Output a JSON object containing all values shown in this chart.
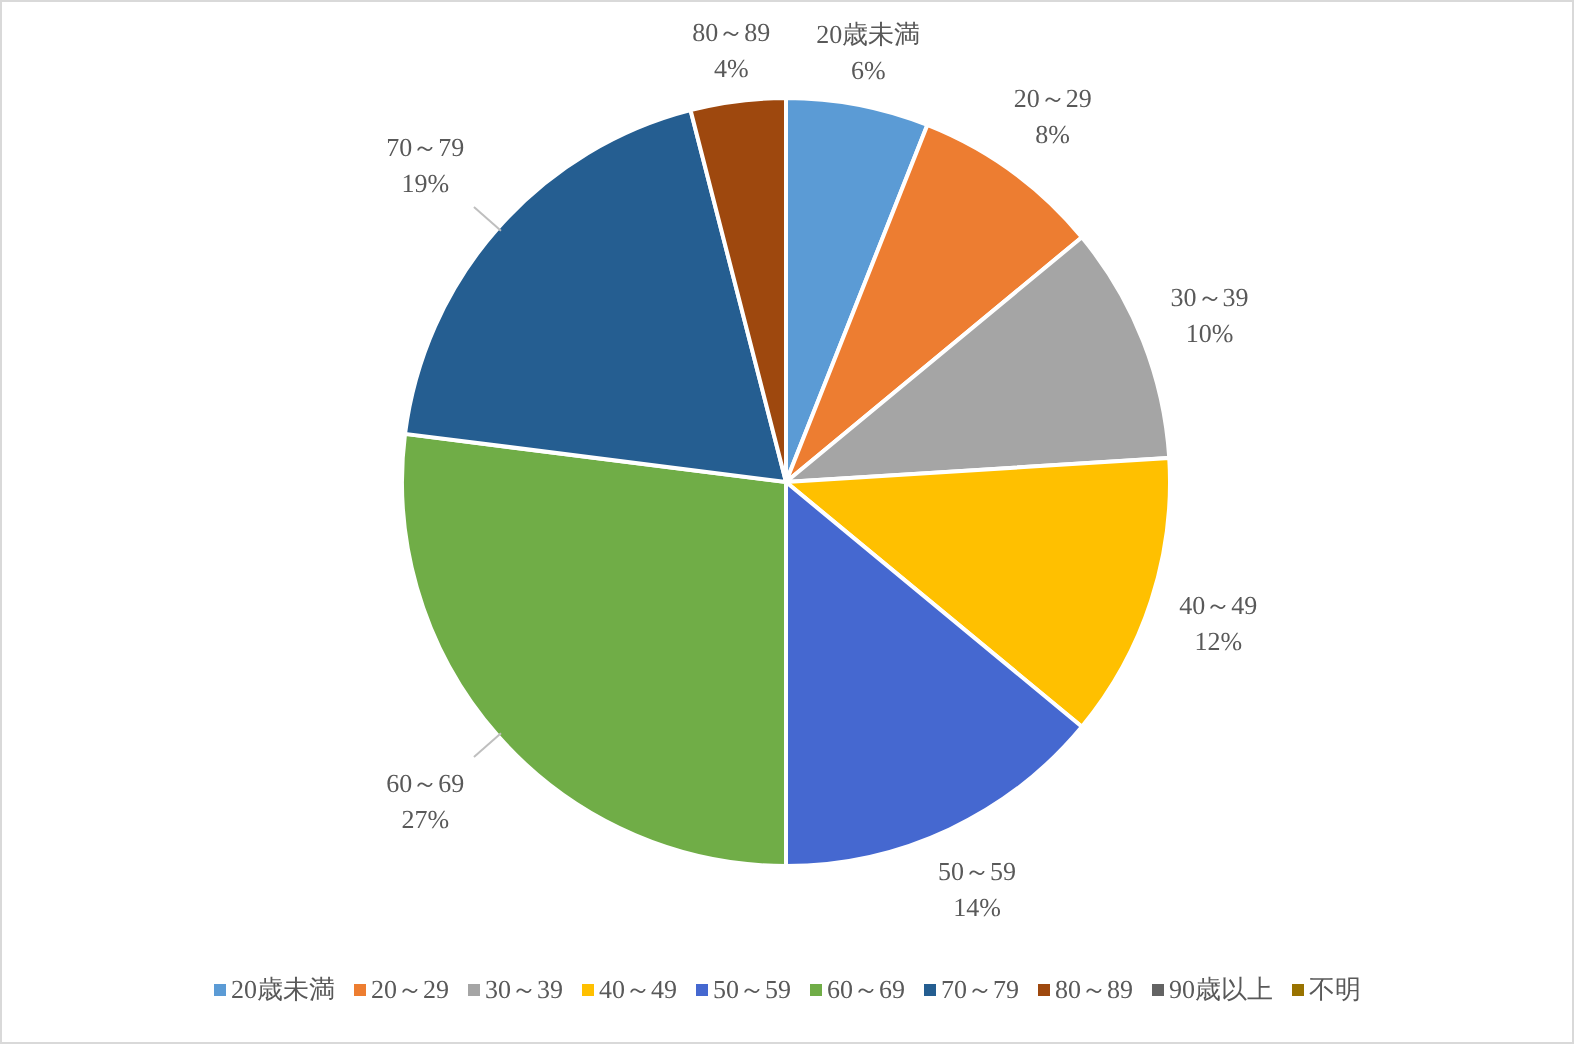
{
  "chart_data": {
    "type": "pie",
    "categories": [
      "20歳未満",
      "20～29",
      "30～39",
      "40～49",
      "50～59",
      "60～69",
      "70～79",
      "80～89",
      "90歳以上",
      "不明"
    ],
    "values": [
      6,
      8,
      10,
      12,
      14,
      27,
      19,
      4,
      0,
      0
    ],
    "colors": [
      "#5b9bd5",
      "#ed7d31",
      "#a5a5a5",
      "#ffc000",
      "#4568d0",
      "#70ad47",
      "#255e91",
      "#9e480e",
      "#636363",
      "#997300"
    ],
    "value_labels": [
      "6%",
      "8%",
      "10%",
      "12%",
      "14%",
      "27%",
      "19%",
      "4%",
      null,
      null
    ],
    "legend": "bottom"
  }
}
